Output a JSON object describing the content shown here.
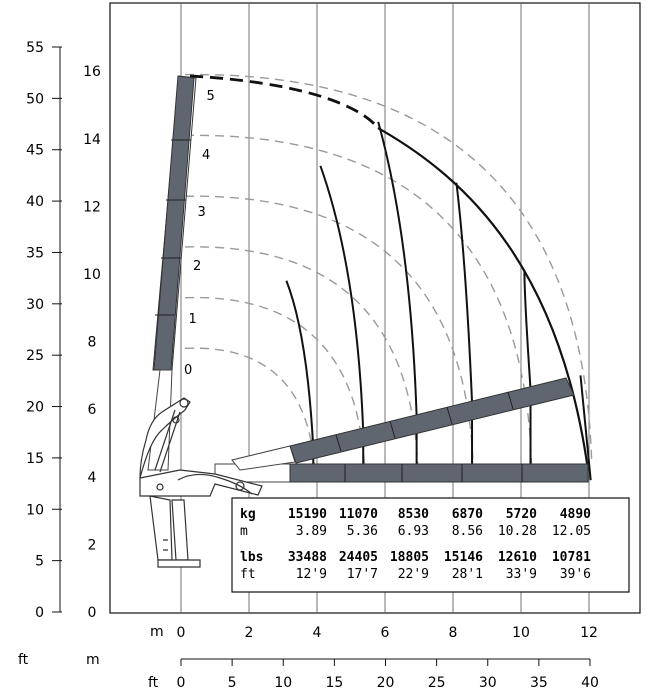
{
  "units": {
    "ft_left": "ft",
    "m_left": "m",
    "m_bottom": "m",
    "ft_bottom": "ft"
  },
  "axes": {
    "ft_vertical_ticks": [
      "0",
      "5",
      "10",
      "15",
      "20",
      "25",
      "30",
      "35",
      "40",
      "45",
      "50",
      "55"
    ],
    "m_vertical_ticks": [
      "0",
      "2",
      "4",
      "6",
      "8",
      "10",
      "12",
      "14",
      "16"
    ],
    "m_horizontal_ticks": [
      "0",
      "2",
      "4",
      "6",
      "8",
      "10",
      "12"
    ],
    "ft_horizontal_ticks": [
      "0",
      "5",
      "10",
      "15",
      "20",
      "25",
      "30",
      "35",
      "40"
    ]
  },
  "extension_labels": [
    "0",
    "1",
    "2",
    "3",
    "4",
    "5"
  ],
  "load_table": {
    "unit_kg": "kg",
    "unit_m": "m",
    "unit_lbs": "lbs",
    "unit_ft": "ft",
    "kg": [
      "15190",
      "11070",
      "8530",
      "6870",
      "5720",
      "4890"
    ],
    "m": [
      "3.89",
      "5.36",
      "6.93",
      "8.56",
      "10.28",
      "12.05"
    ],
    "lbs": [
      "33488",
      "24405",
      "18805",
      "15146",
      "12610",
      "10781"
    ],
    "ft": [
      "12'9",
      "17'7",
      "22'9",
      "28'1",
      "33'9",
      "39'6"
    ]
  },
  "chart_data": {
    "type": "line",
    "xlabel": "m",
    "ylabel": "m",
    "xlim": [
      0,
      12
    ],
    "ylim": [
      0,
      16
    ],
    "series": [
      {
        "name": "0",
        "values": [
          [
            0,
            7.8
          ],
          [
            3.89,
            4.4
          ]
        ]
      },
      {
        "name": "1",
        "values": [
          [
            0,
            9.3
          ],
          [
            5.36,
            4.4
          ]
        ]
      },
      {
        "name": "2",
        "values": [
          [
            0,
            10.8
          ],
          [
            6.93,
            4.4
          ]
        ]
      },
      {
        "name": "3",
        "values": [
          [
            0,
            12.3
          ],
          [
            8.56,
            4.4
          ]
        ]
      },
      {
        "name": "4",
        "values": [
          [
            0,
            14.1
          ],
          [
            10.28,
            4.4
          ]
        ]
      },
      {
        "name": "5",
        "values": [
          [
            0,
            15.9
          ],
          [
            12.05,
            4.4
          ]
        ]
      }
    ]
  },
  "colors": {
    "boom": "#5f6670",
    "line": "#111111",
    "grid": "#555555",
    "dash": "#999999"
  }
}
